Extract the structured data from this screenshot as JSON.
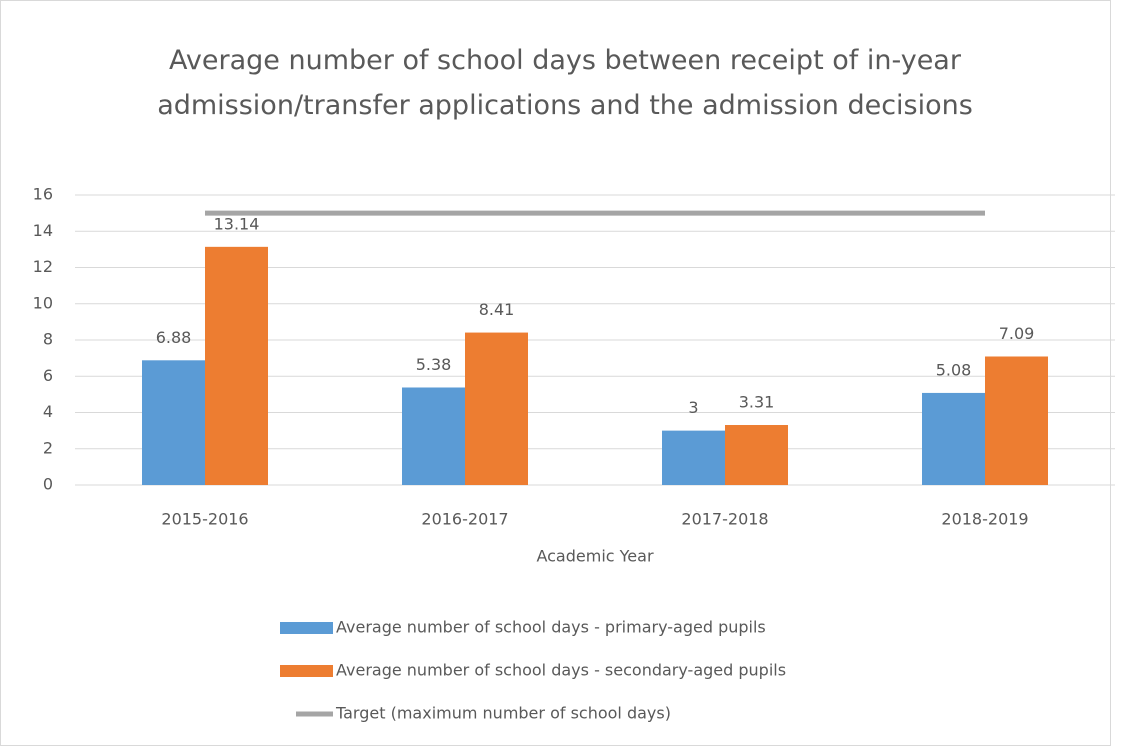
{
  "chart_data": {
    "type": "bar",
    "title": "Average number of school days between receipt of in-year admission/transfer applications and the admission decisions",
    "x_label": "Academic Year",
    "categories": [
      "2015-2016",
      "2016-2017",
      "2017-2018",
      "2018-2019"
    ],
    "series": [
      {
        "name": "Average number of school days  - primary-aged pupils",
        "type": "bar",
        "color": "#5b9bd5",
        "values": [
          6.88,
          5.38,
          3,
          5.08
        ]
      },
      {
        "name": "Average number of school days  - secondary-aged pupils",
        "type": "bar",
        "color": "#ed7d31",
        "values": [
          13.14,
          8.41,
          3.31,
          7.09
        ]
      },
      {
        "name": "Target (maximum number of school days)",
        "type": "line",
        "color": "#a5a5a5",
        "values": [
          15,
          15,
          15,
          15
        ]
      }
    ],
    "ylim": [
      0,
      16
    ],
    "yticks": [
      0,
      2,
      4,
      6,
      8,
      10,
      12,
      14,
      16
    ],
    "grid": true,
    "legend": "bottom"
  }
}
